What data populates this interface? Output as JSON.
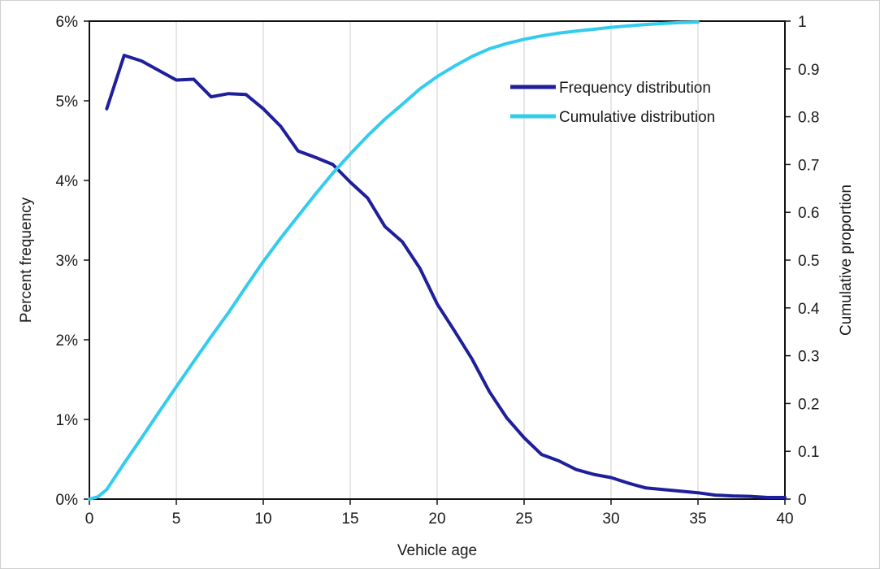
{
  "chart_data": {
    "type": "line",
    "xlabel": "Vehicle age",
    "ylabel_left": "Percent frequency",
    "ylabel_right": "Cumulative proportion",
    "xlim": [
      0,
      40
    ],
    "ylim_left": [
      0,
      6
    ],
    "ylim_right": [
      0,
      1
    ],
    "x_ticks": [
      "0",
      "5",
      "10",
      "15",
      "20",
      "25",
      "30",
      "35",
      "40"
    ],
    "y_left_ticks": [
      "0%",
      "1%",
      "2%",
      "3%",
      "4%",
      "5%",
      "6%"
    ],
    "y_right_ticks": [
      "0",
      "0.1",
      "0.2",
      "0.3",
      "0.4",
      "0.5",
      "0.6",
      "0.7",
      "0.8",
      "0.9",
      "1"
    ],
    "grid": "vertical",
    "legend_position": "top-right",
    "series": [
      {
        "name": "Frequency distribution",
        "axis": "left",
        "color": "#1f1f9b",
        "x": [
          1,
          2,
          3,
          4,
          5,
          6,
          7,
          8,
          9,
          10,
          11,
          12,
          13,
          14,
          15,
          16,
          17,
          18,
          19,
          20,
          21,
          22,
          23,
          24,
          25,
          26,
          27,
          28,
          29,
          30,
          31,
          32,
          33,
          34,
          35,
          36,
          37,
          38,
          39,
          40
        ],
        "values": [
          4.9,
          5.57,
          5.5,
          5.38,
          5.26,
          5.27,
          5.05,
          5.09,
          5.08,
          4.9,
          4.68,
          4.37,
          4.29,
          4.2,
          3.98,
          3.78,
          3.42,
          3.23,
          2.9,
          2.45,
          2.11,
          1.76,
          1.35,
          1.02,
          0.77,
          0.56,
          0.48,
          0.37,
          0.31,
          0.27,
          0.2,
          0.14,
          0.12,
          0.1,
          0.08,
          0.05,
          0.04,
          0.035,
          0.02,
          0.02
        ]
      },
      {
        "name": "Cumulative distribution",
        "axis": "right",
        "color": "#33ccee",
        "x": [
          0,
          0.5,
          1,
          2,
          3,
          4,
          5,
          6,
          7,
          8,
          9,
          10,
          11,
          12,
          13,
          14,
          15,
          16,
          17,
          18,
          19,
          20,
          21,
          22,
          23,
          24,
          25,
          26,
          27,
          28,
          29,
          30,
          31,
          32,
          33,
          34,
          35
        ],
        "values": [
          0,
          0.005,
          0.02,
          0.075,
          0.128,
          0.182,
          0.235,
          0.288,
          0.34,
          0.39,
          0.444,
          0.497,
          0.546,
          0.592,
          0.638,
          0.682,
          0.722,
          0.76,
          0.795,
          0.826,
          0.858,
          0.884,
          0.906,
          0.926,
          0.942,
          0.953,
          0.962,
          0.969,
          0.975,
          0.979,
          0.983,
          0.987,
          0.99,
          0.993,
          0.995,
          0.997,
          0.998
        ]
      }
    ]
  }
}
